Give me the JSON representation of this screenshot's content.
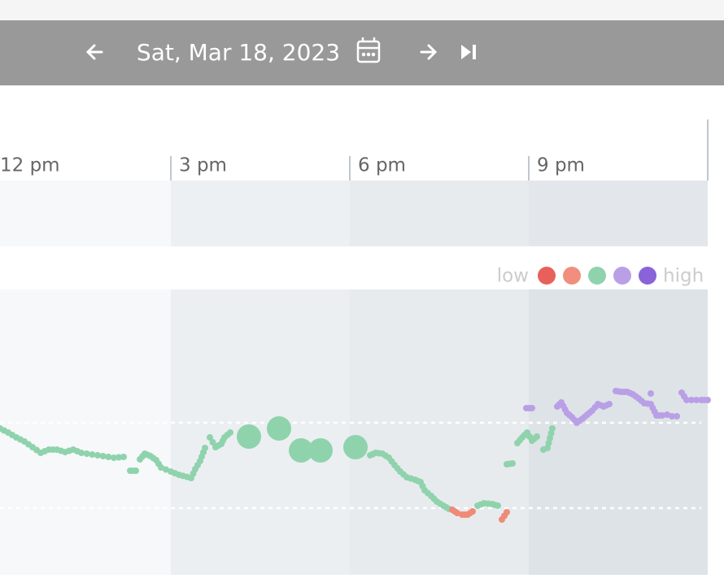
{
  "header": {
    "date": "Sat, Mar 18, 2023"
  },
  "timeline": {
    "labels": [
      "12 pm",
      "3 pm",
      "6 pm",
      "9 pm"
    ]
  },
  "legend": {
    "low": "low",
    "high": "high"
  }
}
